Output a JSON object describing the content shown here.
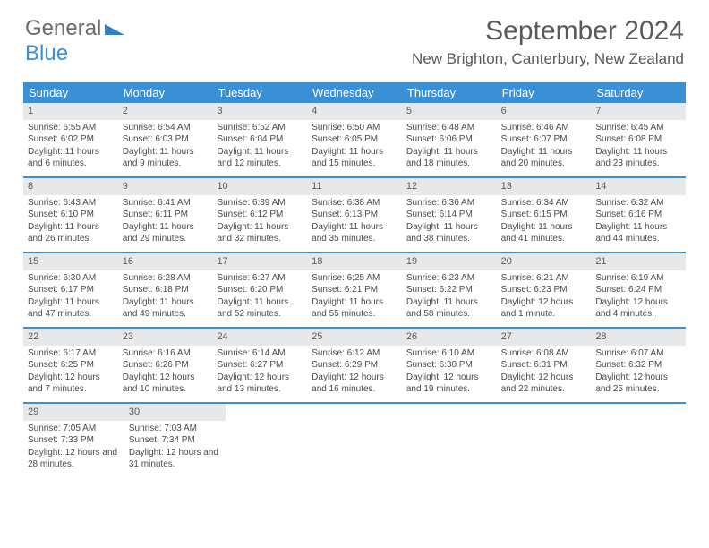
{
  "brand": {
    "part1": "General",
    "part2": "Blue"
  },
  "title": "September 2024",
  "location": "New Brighton, Canterbury, New Zealand",
  "colors": {
    "header_bg": "#3b8fd4",
    "daynum_bg": "#e7e8e9",
    "text": "#4a4a4a",
    "border": "#3b8fd4"
  },
  "day_names": [
    "Sunday",
    "Monday",
    "Tuesday",
    "Wednesday",
    "Thursday",
    "Friday",
    "Saturday"
  ],
  "weeks": [
    [
      {
        "n": "1",
        "sr": "Sunrise: 6:55 AM",
        "ss": "Sunset: 6:02 PM",
        "dl": "Daylight: 11 hours and 6 minutes."
      },
      {
        "n": "2",
        "sr": "Sunrise: 6:54 AM",
        "ss": "Sunset: 6:03 PM",
        "dl": "Daylight: 11 hours and 9 minutes."
      },
      {
        "n": "3",
        "sr": "Sunrise: 6:52 AM",
        "ss": "Sunset: 6:04 PM",
        "dl": "Daylight: 11 hours and 12 minutes."
      },
      {
        "n": "4",
        "sr": "Sunrise: 6:50 AM",
        "ss": "Sunset: 6:05 PM",
        "dl": "Daylight: 11 hours and 15 minutes."
      },
      {
        "n": "5",
        "sr": "Sunrise: 6:48 AM",
        "ss": "Sunset: 6:06 PM",
        "dl": "Daylight: 11 hours and 18 minutes."
      },
      {
        "n": "6",
        "sr": "Sunrise: 6:46 AM",
        "ss": "Sunset: 6:07 PM",
        "dl": "Daylight: 11 hours and 20 minutes."
      },
      {
        "n": "7",
        "sr": "Sunrise: 6:45 AM",
        "ss": "Sunset: 6:08 PM",
        "dl": "Daylight: 11 hours and 23 minutes."
      }
    ],
    [
      {
        "n": "8",
        "sr": "Sunrise: 6:43 AM",
        "ss": "Sunset: 6:10 PM",
        "dl": "Daylight: 11 hours and 26 minutes."
      },
      {
        "n": "9",
        "sr": "Sunrise: 6:41 AM",
        "ss": "Sunset: 6:11 PM",
        "dl": "Daylight: 11 hours and 29 minutes."
      },
      {
        "n": "10",
        "sr": "Sunrise: 6:39 AM",
        "ss": "Sunset: 6:12 PM",
        "dl": "Daylight: 11 hours and 32 minutes."
      },
      {
        "n": "11",
        "sr": "Sunrise: 6:38 AM",
        "ss": "Sunset: 6:13 PM",
        "dl": "Daylight: 11 hours and 35 minutes."
      },
      {
        "n": "12",
        "sr": "Sunrise: 6:36 AM",
        "ss": "Sunset: 6:14 PM",
        "dl": "Daylight: 11 hours and 38 minutes."
      },
      {
        "n": "13",
        "sr": "Sunrise: 6:34 AM",
        "ss": "Sunset: 6:15 PM",
        "dl": "Daylight: 11 hours and 41 minutes."
      },
      {
        "n": "14",
        "sr": "Sunrise: 6:32 AM",
        "ss": "Sunset: 6:16 PM",
        "dl": "Daylight: 11 hours and 44 minutes."
      }
    ],
    [
      {
        "n": "15",
        "sr": "Sunrise: 6:30 AM",
        "ss": "Sunset: 6:17 PM",
        "dl": "Daylight: 11 hours and 47 minutes."
      },
      {
        "n": "16",
        "sr": "Sunrise: 6:28 AM",
        "ss": "Sunset: 6:18 PM",
        "dl": "Daylight: 11 hours and 49 minutes."
      },
      {
        "n": "17",
        "sr": "Sunrise: 6:27 AM",
        "ss": "Sunset: 6:20 PM",
        "dl": "Daylight: 11 hours and 52 minutes."
      },
      {
        "n": "18",
        "sr": "Sunrise: 6:25 AM",
        "ss": "Sunset: 6:21 PM",
        "dl": "Daylight: 11 hours and 55 minutes."
      },
      {
        "n": "19",
        "sr": "Sunrise: 6:23 AM",
        "ss": "Sunset: 6:22 PM",
        "dl": "Daylight: 11 hours and 58 minutes."
      },
      {
        "n": "20",
        "sr": "Sunrise: 6:21 AM",
        "ss": "Sunset: 6:23 PM",
        "dl": "Daylight: 12 hours and 1 minute."
      },
      {
        "n": "21",
        "sr": "Sunrise: 6:19 AM",
        "ss": "Sunset: 6:24 PM",
        "dl": "Daylight: 12 hours and 4 minutes."
      }
    ],
    [
      {
        "n": "22",
        "sr": "Sunrise: 6:17 AM",
        "ss": "Sunset: 6:25 PM",
        "dl": "Daylight: 12 hours and 7 minutes."
      },
      {
        "n": "23",
        "sr": "Sunrise: 6:16 AM",
        "ss": "Sunset: 6:26 PM",
        "dl": "Daylight: 12 hours and 10 minutes."
      },
      {
        "n": "24",
        "sr": "Sunrise: 6:14 AM",
        "ss": "Sunset: 6:27 PM",
        "dl": "Daylight: 12 hours and 13 minutes."
      },
      {
        "n": "25",
        "sr": "Sunrise: 6:12 AM",
        "ss": "Sunset: 6:29 PM",
        "dl": "Daylight: 12 hours and 16 minutes."
      },
      {
        "n": "26",
        "sr": "Sunrise: 6:10 AM",
        "ss": "Sunset: 6:30 PM",
        "dl": "Daylight: 12 hours and 19 minutes."
      },
      {
        "n": "27",
        "sr": "Sunrise: 6:08 AM",
        "ss": "Sunset: 6:31 PM",
        "dl": "Daylight: 12 hours and 22 minutes."
      },
      {
        "n": "28",
        "sr": "Sunrise: 6:07 AM",
        "ss": "Sunset: 6:32 PM",
        "dl": "Daylight: 12 hours and 25 minutes."
      }
    ],
    [
      {
        "n": "29",
        "sr": "Sunrise: 7:05 AM",
        "ss": "Sunset: 7:33 PM",
        "dl": "Daylight: 12 hours and 28 minutes."
      },
      {
        "n": "30",
        "sr": "Sunrise: 7:03 AM",
        "ss": "Sunset: 7:34 PM",
        "dl": "Daylight: 12 hours and 31 minutes."
      },
      null,
      null,
      null,
      null,
      null
    ]
  ]
}
